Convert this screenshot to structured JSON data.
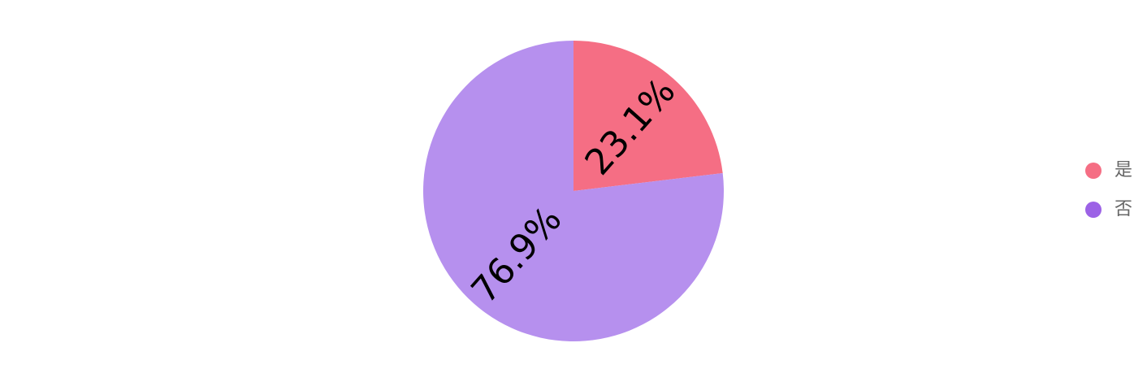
{
  "chart_data": {
    "type": "pie",
    "categories": [
      "是",
      "否"
    ],
    "values": [
      23.1,
      76.9
    ],
    "data_labels": [
      "23.1%",
      "76.9%"
    ],
    "colors": [
      "#f56e84",
      "#b690ee"
    ],
    "legend_colors": [
      "#f56e84",
      "#9c62e6"
    ],
    "legend_position": "right"
  }
}
